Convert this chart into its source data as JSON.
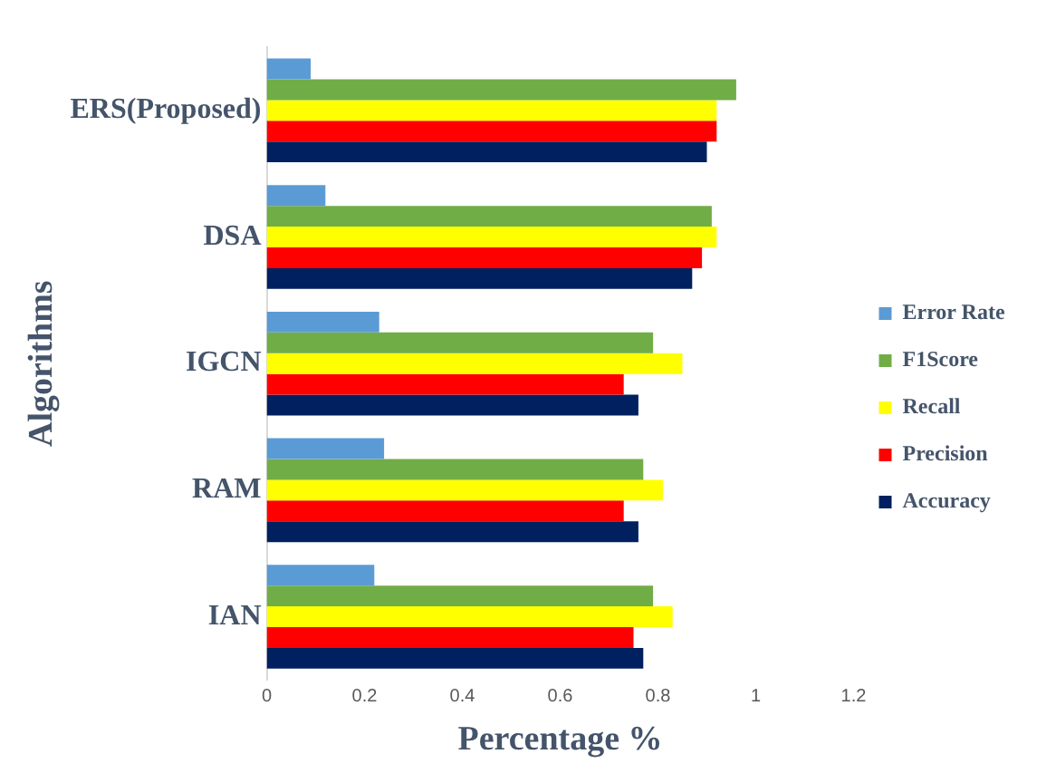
{
  "chart_data": {
    "type": "bar",
    "orientation": "horizontal",
    "xlabel": "Percentage %",
    "ylabel": "Algorithms",
    "categories": [
      "ERS(Proposed)",
      "DSA",
      "IGCN",
      "RAM",
      "IAN"
    ],
    "series": [
      {
        "name": "Error Rate",
        "color": "#5b9bd5",
        "values": [
          0.09,
          0.12,
          0.23,
          0.24,
          0.22
        ]
      },
      {
        "name": "F1Score",
        "color": "#70ad47",
        "values": [
          0.96,
          0.91,
          0.79,
          0.77,
          0.79
        ]
      },
      {
        "name": "Recall",
        "color": "#ffff00",
        "values": [
          0.92,
          0.92,
          0.85,
          0.81,
          0.83
        ]
      },
      {
        "name": "Precision",
        "color": "#ff0000",
        "values": [
          0.92,
          0.89,
          0.73,
          0.73,
          0.75
        ]
      },
      {
        "name": "Accuracy",
        "color": "#002060",
        "values": [
          0.9,
          0.87,
          0.76,
          0.76,
          0.77
        ]
      }
    ],
    "xlim": [
      0,
      1.2
    ],
    "xticks": [
      0,
      0.2,
      0.4,
      0.6,
      0.8,
      1,
      1.2
    ],
    "grid": false,
    "legend": "right"
  }
}
